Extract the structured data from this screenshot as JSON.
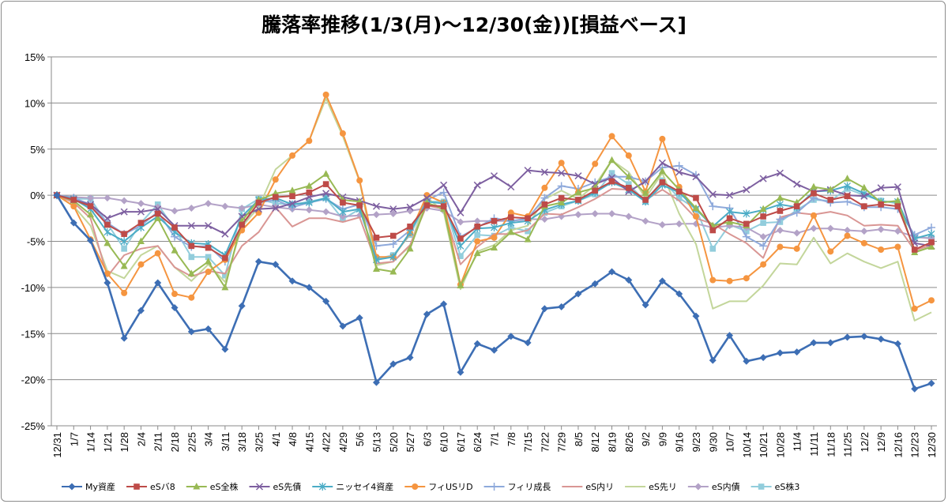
{
  "chart_data": {
    "type": "line",
    "title": "騰落率推移(1/3(月)～12/30(金))[損益ベース]",
    "xlabel": "",
    "ylabel": "",
    "ylim": [
      -25,
      15
    ],
    "yticks": [
      15,
      10,
      5,
      0,
      -5,
      -10,
      -15,
      -20,
      -25
    ],
    "ytick_labels": [
      "15%",
      "10%",
      "5%",
      "0%",
      "-5%",
      "-10%",
      "-15%",
      "-20%",
      "-25%"
    ],
    "grid": "horizontal",
    "legend_position": "bottom",
    "categories": [
      "12/31",
      "1/7",
      "1/14",
      "1/21",
      "1/28",
      "2/4",
      "2/11",
      "2/18",
      "2/25",
      "3/4",
      "3/11",
      "3/18",
      "3/25",
      "4/1",
      "4/8",
      "4/15",
      "4/22",
      "4/29",
      "5/6",
      "5/13",
      "5/20",
      "5/27",
      "6/3",
      "6/10",
      "6/17",
      "6/24",
      "7/1",
      "7/8",
      "7/15",
      "7/22",
      "7/29",
      "8/5",
      "8/12",
      "8/19",
      "8/26",
      "9/2",
      "9/9",
      "9/16",
      "9/23",
      "9/30",
      "10/7",
      "10/14",
      "10/21",
      "10/28",
      "11/4",
      "11/11",
      "11/18",
      "11/25",
      "12/2",
      "12/9",
      "12/16",
      "12/23",
      "12/30"
    ],
    "series": [
      {
        "name": "My資産",
        "color": "#3d6eb4",
        "marker": "diamond",
        "values": [
          0,
          -3,
          -4.9,
          -9.5,
          -15.5,
          -12.5,
          -9.5,
          -12.2,
          -14.8,
          -14.5,
          -16.7,
          -12,
          -7.2,
          -7.5,
          -9.3,
          -10,
          -11.5,
          -14.2,
          -13.3,
          -20.3,
          -18.3,
          -17.6,
          -12.9,
          -11.8,
          -19.2,
          -16.1,
          -16.8,
          -15.3,
          -16,
          -12.3,
          -12.1,
          -10.7,
          -9.6,
          -8.3,
          -9.2,
          -11.9,
          -9.3,
          -10.7,
          -13.1,
          -17.9,
          -15.2,
          -18,
          -17.6,
          -17.1,
          -17,
          -16,
          -16,
          -15.4,
          -15.3,
          -15.6,
          -16.1,
          -21,
          -20.4
        ]
      },
      {
        "name": "eSバ8",
        "color": "#be4b48",
        "marker": "square",
        "values": [
          0,
          -0.5,
          -1.2,
          -3.2,
          -4.2,
          -3,
          -2,
          -3.5,
          -5.5,
          -5.7,
          -6.8,
          -3.2,
          -0.8,
          -0.2,
          -0.1,
          0.3,
          1.2,
          -0.8,
          -1.1,
          -4.6,
          -4.4,
          -3.4,
          -1.1,
          -1.2,
          -4.7,
          -3.4,
          -2.8,
          -2.4,
          -2.5,
          -1,
          -0.3,
          -0.5,
          0.5,
          1.5,
          0.8,
          -0.5,
          1.4,
          0.4,
          -0.3,
          -3.8,
          -2.5,
          -3.1,
          -2.3,
          -1.7,
          -1.2,
          0.2,
          -0.5,
          -0.1,
          -1.2,
          -1,
          -1.2,
          -5.9,
          -5.1
        ]
      },
      {
        "name": "eS全株",
        "color": "#98b954",
        "marker": "triangle",
        "values": [
          0,
          -0.6,
          -2.1,
          -5.2,
          -7.7,
          -5,
          -2.5,
          -6,
          -8.5,
          -7.2,
          -10,
          -2.8,
          -0.5,
          0.2,
          0.5,
          1,
          2.3,
          -0.5,
          -0.7,
          -8,
          -8.3,
          -5.8,
          -0.8,
          -1.5,
          -9.8,
          -6.3,
          -5.7,
          -4,
          -4.8,
          -1.2,
          -0.8,
          0.3,
          0.8,
          3.8,
          2,
          0.2,
          2.6,
          0.6,
          -1.4,
          -3.3,
          -2.9,
          -3.3,
          -1.5,
          -0.3,
          -0.8,
          0.9,
          0.6,
          1.8,
          0.8,
          -0.8,
          -0.6,
          -6.2,
          -5.6
        ]
      },
      {
        "name": "eS先債",
        "color": "#7d5fa0",
        "marker": "x",
        "values": [
          0,
          -0.5,
          -1,
          -2.5,
          -1.8,
          -1.8,
          -1.5,
          -3.3,
          -3.3,
          -3.3,
          -4.2,
          -2.3,
          -1.5,
          -1.4,
          -0.9,
          -0.2,
          0.2,
          -0.2,
          -0.6,
          -1.2,
          -1.5,
          -1.3,
          -0.3,
          1.1,
          -1.9,
          1.1,
          2.1,
          0.9,
          2.7,
          2.5,
          2.4,
          2.1,
          1.2,
          1.9,
          0.4,
          1.5,
          3.5,
          2.5,
          2,
          0.1,
          0,
          0.6,
          1.8,
          2.4,
          1.2,
          0.4,
          0.6,
          0,
          -0.1,
          0.8,
          0.9,
          -5.2,
          -5.5
        ]
      },
      {
        "name": "ニッセイ4資産",
        "color": "#4bacc6",
        "marker": "asterisk",
        "values": [
          0,
          -0.4,
          -1.5,
          -4,
          -5,
          -3.5,
          -2.3,
          -4,
          -5.2,
          -5.3,
          -6.5,
          -2.3,
          -0.5,
          -0.3,
          -1,
          -0.8,
          -0.3,
          -1.8,
          -1.5,
          -7,
          -6.7,
          -4,
          -0.7,
          -0.9,
          -5.5,
          -3.6,
          -3.5,
          -3,
          -2.8,
          -1.6,
          -1,
          -0.6,
          0.3,
          1.4,
          0.6,
          -0.7,
          1.1,
          0.3,
          -1.5,
          -3.4,
          -1.8,
          -2,
          -1.6,
          -1,
          -1.3,
          0.4,
          0.5,
          1,
          0.2,
          -0.7,
          -0.7,
          -4.7,
          -4.2
        ]
      },
      {
        "name": "フィUSリD",
        "color": "#f59540",
        "marker": "circle",
        "values": [
          0,
          -1.2,
          -4.8,
          -8.5,
          -10.6,
          -7.5,
          -6.3,
          -10.7,
          -11.1,
          -8.3,
          -7,
          -3.8,
          -1.9,
          1.7,
          4.3,
          5.9,
          10.9,
          6.7,
          1.6,
          -6.7,
          -6.7,
          -4.1,
          0,
          -0.8,
          -9.7,
          -5,
          -4.6,
          -1.9,
          -2.3,
          0.8,
          3.5,
          0.3,
          3.4,
          6.4,
          4.3,
          0.4,
          6.1,
          0.9,
          -2.3,
          -9.2,
          -9.3,
          -9,
          -7.5,
          -5.6,
          -5.8,
          -2.2,
          -6.1,
          -4.4,
          -5.2,
          -5.9,
          -5.6,
          -12.3,
          -11.4
        ]
      },
      {
        "name": "フィリ成長",
        "color": "#8ea9db",
        "marker": "plus",
        "values": [
          0,
          -0.3,
          -1,
          -3,
          -4.2,
          -3.3,
          -1.8,
          -4.5,
          -5.6,
          -5.5,
          -7.2,
          -3.3,
          -0.8,
          -0.5,
          -1.3,
          -0.8,
          -0.4,
          -1.5,
          -1,
          -5.5,
          -5.3,
          -3.8,
          -0.5,
          0.3,
          -4.5,
          -3.5,
          -2.5,
          -2.8,
          -2.5,
          -0.3,
          1,
          0.7,
          1.4,
          2,
          2,
          1.5,
          3,
          3.2,
          2.2,
          -1.2,
          -1.4,
          -4.5,
          -5.5,
          -2.6,
          -1.9,
          -0.3,
          -0.8,
          -0.7,
          -1.3,
          -1.3,
          -1.5,
          -4.3,
          -3.5
        ]
      },
      {
        "name": "eS内リ",
        "color": "#d99694",
        "marker": "none",
        "values": [
          0,
          -0.8,
          -2.5,
          -8.8,
          -6.5,
          -5.8,
          -5.5,
          -7.8,
          -8.8,
          -8.2,
          -8.5,
          -5.5,
          -4,
          -1.3,
          -3.4,
          -2.5,
          -2.5,
          -2.9,
          -2.4,
          -7.4,
          -7.2,
          -5.4,
          -1.1,
          -1.5,
          -7.5,
          -5.6,
          -4.2,
          -4.2,
          -3.8,
          -2,
          -2.1,
          -1.3,
          -0.4,
          0.7,
          0.6,
          -0.5,
          0.6,
          -0.6,
          -2.5,
          -3.1,
          -4.2,
          -5.2,
          -6.8,
          -2.4,
          -1.9,
          -2.1,
          -1.8,
          -2.2,
          -3.3,
          -3.2,
          -3.3,
          -6,
          -5.4
        ]
      },
      {
        "name": "eS先リ",
        "color": "#c3d69b",
        "marker": "none",
        "values": [
          0,
          -1.2,
          -3.3,
          -8.2,
          -9,
          -6.5,
          -5.5,
          -7.8,
          -9.3,
          -7.5,
          -9.4,
          -3.4,
          -1.3,
          2.8,
          4.3,
          5.9,
          10.5,
          6.4,
          1.5,
          -7.6,
          -7.2,
          -5.5,
          -0.2,
          -1.8,
          -10.2,
          -6.1,
          -5.4,
          -3.8,
          -3.3,
          -0.4,
          0.5,
          -0.4,
          1.1,
          3.8,
          2.5,
          -0.3,
          2.4,
          -2,
          -5.3,
          -12.3,
          -11.5,
          -11.5,
          -9.8,
          -7.4,
          -7.5,
          -4.6,
          -7.4,
          -6.3,
          -7.2,
          -7.9,
          -7.2,
          -13.6,
          -12.7
        ]
      },
      {
        "name": "eS内債",
        "color": "#b3a2c7",
        "marker": "diamond",
        "values": [
          0,
          -0.2,
          -0.3,
          -0.3,
          -0.6,
          -0.9,
          -1.3,
          -1.7,
          -1.4,
          -0.9,
          -1.2,
          -1.4,
          -1,
          -1.3,
          -1.5,
          -1.6,
          -1.8,
          -2.3,
          -2.2,
          -2.1,
          -2,
          -1.7,
          -1.4,
          -1.7,
          -2.9,
          -2.8,
          -2.8,
          -2.8,
          -2.6,
          -2.6,
          -2.3,
          -2.1,
          -2,
          -2,
          -2.3,
          -2.8,
          -3.2,
          -3.1,
          -3.1,
          -3.5,
          -3.3,
          -3.5,
          -4.5,
          -3.8,
          -4.1,
          -3.6,
          -3.6,
          -3.8,
          -3.9,
          -3.7,
          -3.9,
          -4.5,
          -4.7
        ]
      },
      {
        "name": "eS株3",
        "color": "#92cddc",
        "marker": "square",
        "values": [
          0,
          -0.4,
          -0.4,
          -3.1,
          -5.8,
          -3,
          -1,
          -3.6,
          -6.7,
          -6.7,
          -8.7,
          -1.5,
          -0.4,
          -0.9,
          -1,
          -0.7,
          -0.3,
          -2.6,
          -1.5,
          -6.9,
          -6.5,
          -4.3,
          -0.7,
          -0.7,
          -6.6,
          -4.3,
          -4.4,
          -3.5,
          -3.9,
          -1.9,
          -1.2,
          -0.6,
          0.1,
          2.4,
          1.2,
          -0.7,
          1.6,
          -0.3,
          -1.5,
          -5.8,
          -3.2,
          -3.9,
          -3,
          -2.9,
          -1.6,
          -0.5,
          -0.6,
          0.7,
          0,
          -0.6,
          -0.9,
          -4.6,
          -4.6
        ]
      }
    ]
  }
}
